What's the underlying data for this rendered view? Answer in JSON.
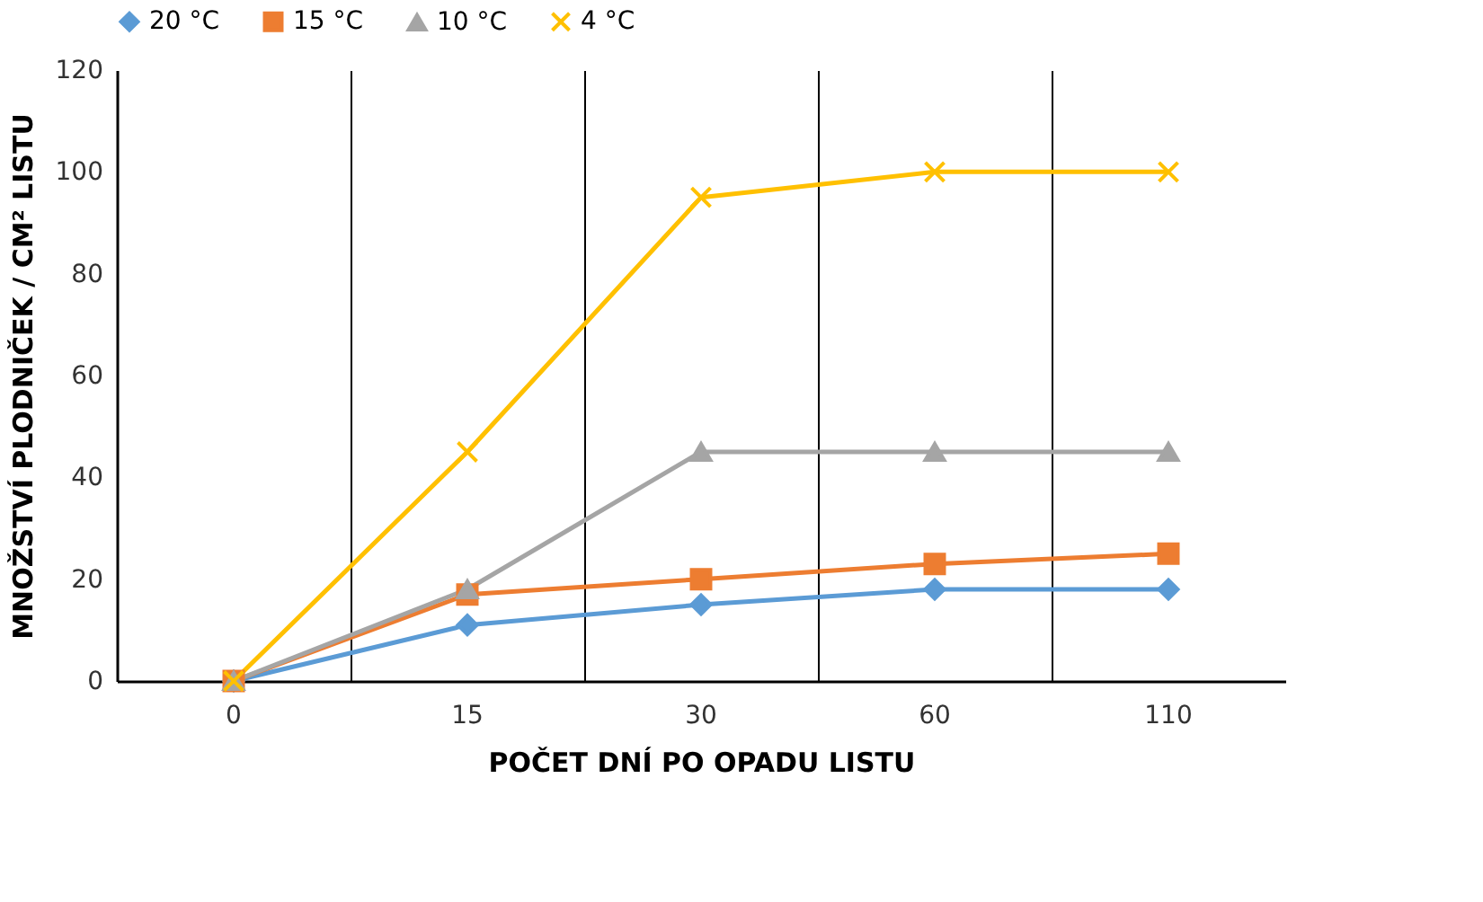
{
  "chart_data": {
    "type": "line",
    "xlabel": "POČET DNÍ PO OPADU LISTU",
    "ylabel": "MNOŽSTVÍ PLODNIČEK / CM² LISTU",
    "categories": [
      "0",
      "15",
      "30",
      "60",
      "110"
    ],
    "series": [
      {
        "name": "20 °C",
        "color": "#5b9bd5",
        "marker": "diamond",
        "values": [
          0,
          11,
          15,
          18,
          18
        ]
      },
      {
        "name": "15 °C",
        "color": "#ed7d31",
        "marker": "square",
        "values": [
          0,
          17,
          20,
          23,
          25
        ]
      },
      {
        "name": "10 °C",
        "color": "#a5a5a5",
        "marker": "triangle",
        "values": [
          0,
          18,
          45,
          45,
          45
        ]
      },
      {
        "name": "4 °C",
        "color": "#ffc000",
        "marker": "cross",
        "values": [
          0,
          45,
          95,
          100,
          100
        ]
      }
    ],
    "ylim": [
      0,
      120
    ],
    "yticks": [
      0,
      20,
      40,
      60,
      80,
      100,
      120
    ],
    "grid": "x",
    "legend": "top",
    "line_style": "solid"
  }
}
